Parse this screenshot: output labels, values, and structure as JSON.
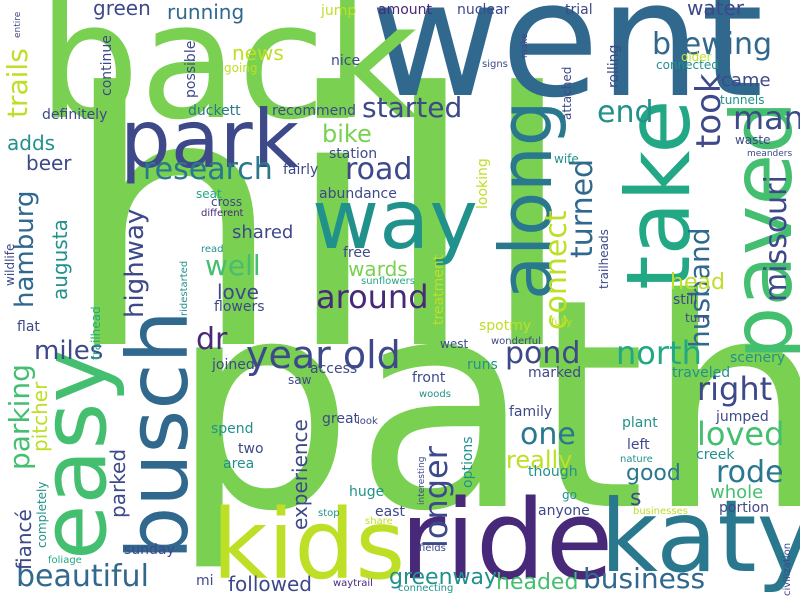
{
  "words": [
    {
      "text": "hill",
      "color": "#7ad151"
    },
    {
      "text": "path",
      "color": "#7ad151"
    },
    {
      "text": "went",
      "color": "#31688e"
    },
    {
      "text": "back",
      "color": "#7ad151"
    },
    {
      "text": "ride",
      "color": "#482878"
    },
    {
      "text": "kids",
      "color": "#bddf26"
    },
    {
      "text": "katy",
      "color": "#2a788e"
    },
    {
      "text": "way",
      "color": "#21918c"
    },
    {
      "text": "park",
      "color": "#3e4989"
    },
    {
      "text": "take",
      "color": "#22a884"
    },
    {
      "text": "paved",
      "color": "#44bf70"
    },
    {
      "text": "along",
      "color": "#2a788e"
    },
    {
      "text": "easy",
      "color": "#44bf70"
    },
    {
      "text": "busch",
      "color": "#31688e"
    },
    {
      "text": "year old",
      "color": "#3e4989"
    },
    {
      "text": "around",
      "color": "#482878"
    },
    {
      "text": "research",
      "color": "#2a788e"
    },
    {
      "text": "road",
      "color": "#3e4989"
    },
    {
      "text": "started",
      "color": "#3e4989"
    },
    {
      "text": "brewing",
      "color": "#31688e"
    },
    {
      "text": "many",
      "color": "#3e4989"
    },
    {
      "text": "took",
      "color": "#3e4989"
    },
    {
      "text": "end",
      "color": "#21918c"
    },
    {
      "text": "missouri",
      "color": "#3e4989"
    },
    {
      "text": "turned",
      "color": "#31688e"
    },
    {
      "text": "connect",
      "color": "#bddf26"
    },
    {
      "text": "husband",
      "color": "#31688e"
    },
    {
      "text": "beautiful",
      "color": "#31688e"
    },
    {
      "text": "business",
      "color": "#31688e"
    },
    {
      "text": "loved",
      "color": "#44bf70"
    },
    {
      "text": "rode",
      "color": "#2a788e"
    },
    {
      "text": "right",
      "color": "#3e4989"
    },
    {
      "text": "north",
      "color": "#22a884"
    },
    {
      "text": "pond",
      "color": "#3e4989"
    },
    {
      "text": "one",
      "color": "#2a788e"
    },
    {
      "text": "longer",
      "color": "#3e4989"
    },
    {
      "text": "parking",
      "color": "#44bf70"
    },
    {
      "text": "hamburg",
      "color": "#31688e"
    },
    {
      "text": "highway",
      "color": "#3e4989"
    },
    {
      "text": "miles",
      "color": "#3e4989"
    },
    {
      "text": "well",
      "color": "#44bf70"
    },
    {
      "text": "bike",
      "color": "#7ad151"
    },
    {
      "text": "trails",
      "color": "#bddf26"
    },
    {
      "text": "dr",
      "color": "#482878"
    },
    {
      "text": "really",
      "color": "#bddf26"
    },
    {
      "text": "head",
      "color": "#bddf26"
    },
    {
      "text": "greenway",
      "color": "#21918c"
    },
    {
      "text": "headed",
      "color": "#44bf70"
    },
    {
      "text": "good",
      "color": "#2a788e"
    },
    {
      "text": "whole",
      "color": "#44bf70"
    },
    {
      "text": "followed",
      "color": "#3e4989"
    },
    {
      "text": "parked",
      "color": "#3e4989"
    },
    {
      "text": "experience",
      "color": "#3e4989"
    },
    {
      "text": "fiancé",
      "color": "#3e4989"
    },
    {
      "text": "pitcher",
      "color": "#bddf26"
    },
    {
      "text": "augusta",
      "color": "#21918c"
    },
    {
      "text": "towards",
      "color": "#7ad151"
    },
    {
      "text": "shared",
      "color": "#3e4989"
    },
    {
      "text": "love",
      "color": "#3e4989"
    },
    {
      "text": "news",
      "color": "#bddf26"
    },
    {
      "text": "green",
      "color": "#3e4989"
    },
    {
      "text": "running",
      "color": "#31688e"
    },
    {
      "text": "water",
      "color": "#3e4989"
    },
    {
      "text": "s",
      "color": "#3e4989"
    },
    {
      "text": "adds",
      "color": "#21918c"
    },
    {
      "text": "beer",
      "color": "#3e4989"
    },
    {
      "text": "station",
      "color": "#3e4989"
    },
    {
      "text": "came",
      "color": "#3e4989"
    },
    {
      "text": "jump",
      "color": "#bddf26"
    },
    {
      "text": "amount",
      "color": "#482878"
    },
    {
      "text": "nuclear",
      "color": "#3e4989"
    },
    {
      "text": "trial",
      "color": "#3e4989"
    },
    {
      "text": "nice",
      "color": "#3e4989"
    },
    {
      "text": "definitely",
      "color": "#3e4989"
    },
    {
      "text": "recommend",
      "color": "#3e4989"
    },
    {
      "text": "duckett",
      "color": "#2a788e"
    },
    {
      "text": "going",
      "color": "#bddf26"
    },
    {
      "text": "possible",
      "color": "#3e4989"
    },
    {
      "text": "continue",
      "color": "#3e4989"
    },
    {
      "text": "rolling",
      "color": "#3e4989"
    },
    {
      "text": "attached",
      "color": "#3e4989"
    },
    {
      "text": "older",
      "color": "#bddf26"
    },
    {
      "text": "connected",
      "color": "#21918c"
    },
    {
      "text": "tunnels",
      "color": "#21918c"
    },
    {
      "text": "waste",
      "color": "#3e4989"
    },
    {
      "text": "meanders",
      "color": "#3e4989"
    },
    {
      "text": "wife",
      "color": "#21918c"
    },
    {
      "text": "trailheads",
      "color": "#3e4989"
    },
    {
      "text": "fairly",
      "color": "#3e4989"
    },
    {
      "text": "abundance",
      "color": "#3e4989"
    },
    {
      "text": "cross",
      "color": "#3e4989"
    },
    {
      "text": "seat",
      "color": "#22a884"
    },
    {
      "text": "different",
      "color": "#482878"
    },
    {
      "text": "free",
      "color": "#3e4989"
    },
    {
      "text": "sunflowers",
      "color": "#22a884"
    },
    {
      "text": "read",
      "color": "#21918c"
    },
    {
      "text": "treatment",
      "color": "#bddf26"
    },
    {
      "text": "looking",
      "color": "#bddf26"
    },
    {
      "text": "spotmy",
      "color": "#bddf26"
    },
    {
      "text": "still",
      "color": "#3e4989"
    },
    {
      "text": "turn",
      "color": "#3e4989"
    },
    {
      "text": "scenery",
      "color": "#21918c"
    },
    {
      "text": "fully",
      "color": "#bddf26"
    },
    {
      "text": "wonderful",
      "color": "#3e4989"
    },
    {
      "text": "west",
      "color": "#3e4989"
    },
    {
      "text": "runs",
      "color": "#21918c"
    },
    {
      "text": "front",
      "color": "#3e4989"
    },
    {
      "text": "marked",
      "color": "#3e4989"
    },
    {
      "text": "traveled",
      "color": "#21918c"
    },
    {
      "text": "jumped",
      "color": "#3e4989"
    },
    {
      "text": "plant",
      "color": "#21918c"
    },
    {
      "text": "left",
      "color": "#3e4989"
    },
    {
      "text": "creek",
      "color": "#21918c"
    },
    {
      "text": "nature",
      "color": "#21918c"
    },
    {
      "text": "family",
      "color": "#3e4989"
    },
    {
      "text": "though",
      "color": "#21918c"
    },
    {
      "text": "options",
      "color": "#21918c"
    },
    {
      "text": "interesting",
      "color": "#3e4989"
    },
    {
      "text": "go",
      "color": "#21918c"
    },
    {
      "text": "portion",
      "color": "#3e4989"
    },
    {
      "text": "civilization",
      "color": "#3e4989"
    },
    {
      "text": "anyone",
      "color": "#3e4989"
    },
    {
      "text": "businesses",
      "color": "#bddf26"
    },
    {
      "text": "east",
      "color": "#3e4989"
    },
    {
      "text": "share",
      "color": "#bddf26"
    },
    {
      "text": "stop",
      "color": "#21918c"
    },
    {
      "text": "fields",
      "color": "#3e4989"
    },
    {
      "text": "connecting",
      "color": "#21918c"
    },
    {
      "text": "waytrail",
      "color": "#482878"
    },
    {
      "text": "huge",
      "color": "#21918c"
    },
    {
      "text": "great",
      "color": "#3e4989"
    },
    {
      "text": "look",
      "color": "#3e4989"
    },
    {
      "text": "woods",
      "color": "#21918c"
    },
    {
      "text": "saw",
      "color": "#3e4989"
    },
    {
      "text": "access",
      "color": "#3e4989"
    },
    {
      "text": "joined",
      "color": "#3e4989"
    },
    {
      "text": "flowers",
      "color": "#3e4989"
    },
    {
      "text": "flat",
      "color": "#3e4989"
    },
    {
      "text": "trailhead",
      "color": "#22a884"
    },
    {
      "text": "ridestarted",
      "color": "#21918c"
    },
    {
      "text": "wildlife",
      "color": "#3e4989"
    },
    {
      "text": "two",
      "color": "#3e4989"
    },
    {
      "text": "spend",
      "color": "#21918c"
    },
    {
      "text": "area",
      "color": "#21918c"
    },
    {
      "text": "completely",
      "color": "#21918c"
    },
    {
      "text": "foliage",
      "color": "#22a884"
    },
    {
      "text": "sunday",
      "color": "#3e4989"
    },
    {
      "text": "mi",
      "color": "#3e4989"
    },
    {
      "text": "entire",
      "color": "#3e4989"
    },
    {
      "text": "make",
      "color": "#3e4989"
    },
    {
      "text": "signs",
      "color": "#3e4989"
    }
  ]
}
